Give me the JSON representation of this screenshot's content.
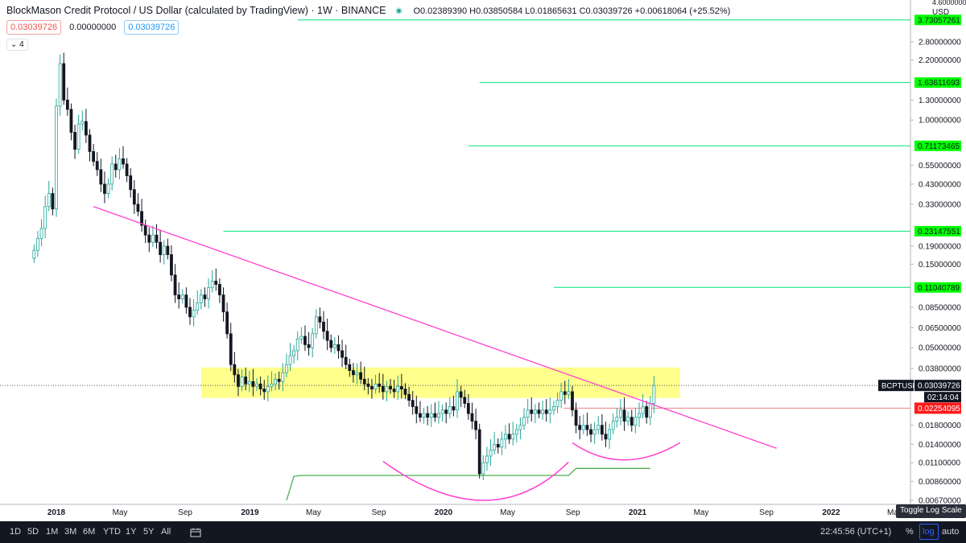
{
  "header": {
    "title": "BlockMason Credit Protocol / US Dollar (calculated by TradingView) · 1W · BINANCE",
    "ohlc": "O0.02389390  H0.03850584  L0.01865631  C0.03039726  +0.00618064 (+25.52%)"
  },
  "badges": {
    "bid": "0.03039726",
    "spread": "0.00000000",
    "ask": "0.03039726",
    "indicator_count": "4"
  },
  "scale": {
    "currency": "USD",
    "top_label": "4.60000000",
    "ticks": [
      {
        "label": "2.80000000",
        "value": 2.8
      },
      {
        "label": "2.20000000",
        "value": 2.2
      },
      {
        "label": "1.30000000",
        "value": 1.3
      },
      {
        "label": "1.00000000",
        "value": 1.0
      },
      {
        "label": "0.55000000",
        "value": 0.55
      },
      {
        "label": "0.43000000",
        "value": 0.43
      },
      {
        "label": "0.33000000",
        "value": 0.33
      },
      {
        "label": "0.19000000",
        "value": 0.19
      },
      {
        "label": "0.15000000",
        "value": 0.15
      },
      {
        "label": "0.08500000",
        "value": 0.085
      },
      {
        "label": "0.06500000",
        "value": 0.065
      },
      {
        "label": "0.05000000",
        "value": 0.05
      },
      {
        "label": "0.03800000",
        "value": 0.038
      },
      {
        "label": "0.01800000",
        "value": 0.018
      },
      {
        "label": "0.01400000",
        "value": 0.014
      },
      {
        "label": "0.01100000",
        "value": 0.011
      },
      {
        "label": "0.00860000",
        "value": 0.0086
      },
      {
        "label": "0.00670000",
        "value": 0.0067
      }
    ],
    "log": true
  },
  "levels": [
    {
      "label": "3.73057261",
      "value": 3.73057261,
      "from": "2019-04-01"
    },
    {
      "label": "1.63611693",
      "value": 1.63611693,
      "from": "2020-03-09"
    },
    {
      "label": "0.71173465",
      "value": 0.71173465,
      "from": "2020-02-17"
    },
    {
      "label": "0.23147551",
      "value": 0.23147551,
      "from": "2018-11-12"
    },
    {
      "label": "0.11040789",
      "value": 0.11040789,
      "from": "2020-07-27"
    }
  ],
  "price_tags": {
    "symbol": "BCPTUSD",
    "price": "0.03039726",
    "countdown": "02:14:04",
    "red_level": "0.02254095",
    "red_value": 0.02254095,
    "current_value": 0.03039726
  },
  "support_zone": {
    "low": 0.0258,
    "high": 0.0385,
    "from": "2018-10-01",
    "to": "2021-03-22"
  },
  "colors": {
    "up": "#26a69a",
    "down": "#131722",
    "level_line": "#00e676",
    "level_tag": "#00ff00",
    "trendline": "#ff40d0",
    "zone": "#ffff66",
    "red_tag": "#ff1a1a",
    "toolbar_bg": "#131722"
  },
  "time_axis": {
    "labels": [
      {
        "label": "2018",
        "date": "2018-01-01"
      },
      {
        "label": "May",
        "date": "2018-05-01"
      },
      {
        "label": "Sep",
        "date": "2018-09-01"
      },
      {
        "label": "2019",
        "date": "2019-01-01"
      },
      {
        "label": "May",
        "date": "2019-05-01"
      },
      {
        "label": "Sep",
        "date": "2019-09-01"
      },
      {
        "label": "2020",
        "date": "2020-01-01"
      },
      {
        "label": "May",
        "date": "2020-05-01"
      },
      {
        "label": "Sep",
        "date": "2020-09-01"
      },
      {
        "label": "2021",
        "date": "2021-01-01"
      },
      {
        "label": "May",
        "date": "2021-05-01"
      },
      {
        "label": "Sep",
        "date": "2021-09-01"
      },
      {
        "label": "2022",
        "date": "2022-01-01"
      },
      {
        "label": "May",
        "date": "2022-05-01"
      }
    ]
  },
  "tooltip": "Toggle Log Scale",
  "bottom_bar": {
    "timeframes": [
      "1D",
      "5D",
      "1M",
      "3M",
      "6M",
      "YTD",
      "1Y",
      "5Y",
      "All"
    ],
    "compare_icon": "calendar-range-icon",
    "time": "22:45:56 (UTC+1)",
    "percent": "%",
    "log": "log",
    "auto": "auto"
  },
  "chart_data": {
    "type": "candlestick",
    "interval": "1W",
    "symbol": "BCPTUSD",
    "log_scale": true,
    "ylim": [
      0.0067,
      4.6
    ],
    "trendline": [
      {
        "date": "2018-03-12",
        "value": 0.32
      },
      {
        "date": "2021-09-20",
        "value": 0.0133
      }
    ],
    "arcs": [
      {
        "from": {
          "date": "2019-09-09",
          "value": 0.0112
        },
        "bottom": {
          "date": "2020-03-16",
          "value": 0.0067
        },
        "to": {
          "date": "2020-08-24",
          "value": 0.0111
        }
      },
      {
        "from": {
          "date": "2020-08-31",
          "value": 0.0143
        },
        "bottom": {
          "date": "2020-12-07",
          "value": 0.0114
        },
        "to": {
          "date": "2021-03-22",
          "value": 0.0143
        }
      }
    ],
    "indicator_line": [
      {
        "date": "2019-03-11",
        "value": 0.0067
      },
      {
        "date": "2019-03-25",
        "value": 0.0092
      },
      {
        "date": "2019-04-08",
        "value": 0.0093
      },
      {
        "date": "2020-08-24",
        "value": 0.0093
      },
      {
        "date": "2020-09-07",
        "value": 0.0102
      },
      {
        "date": "2021-01-25",
        "value": 0.0102
      }
    ],
    "closes": [
      [
        "2017-11-20",
        0.18
      ],
      [
        "2017-11-27",
        0.21
      ],
      [
        "2017-12-04",
        0.24
      ],
      [
        "2017-12-11",
        0.32
      ],
      [
        "2017-12-18",
        0.38
      ],
      [
        "2017-12-25",
        0.31
      ],
      [
        "2018-01-01",
        1.2
      ],
      [
        "2018-01-08",
        2.1
      ],
      [
        "2018-01-15",
        1.3
      ],
      [
        "2018-01-22",
        1.15
      ],
      [
        "2018-01-29",
        0.85
      ],
      [
        "2018-02-05",
        0.68
      ],
      [
        "2018-02-12",
        0.95
      ],
      [
        "2018-02-19",
        0.98
      ],
      [
        "2018-02-26",
        0.82
      ],
      [
        "2018-03-05",
        0.66
      ],
      [
        "2018-03-12",
        0.58
      ],
      [
        "2018-03-19",
        0.52
      ],
      [
        "2018-03-26",
        0.43
      ],
      [
        "2018-04-02",
        0.38
      ],
      [
        "2018-04-09",
        0.43
      ],
      [
        "2018-04-16",
        0.56
      ],
      [
        "2018-04-23",
        0.52
      ],
      [
        "2018-04-30",
        0.6
      ],
      [
        "2018-05-07",
        0.56
      ],
      [
        "2018-05-14",
        0.48
      ],
      [
        "2018-05-21",
        0.4
      ],
      [
        "2018-05-28",
        0.33
      ],
      [
        "2018-06-04",
        0.3
      ],
      [
        "2018-06-11",
        0.25
      ],
      [
        "2018-06-18",
        0.22
      ],
      [
        "2018-06-25",
        0.2
      ],
      [
        "2018-07-02",
        0.22
      ],
      [
        "2018-07-09",
        0.2
      ],
      [
        "2018-07-16",
        0.17
      ],
      [
        "2018-07-23",
        0.19
      ],
      [
        "2018-07-30",
        0.17
      ],
      [
        "2018-08-06",
        0.13
      ],
      [
        "2018-08-13",
        0.1
      ],
      [
        "2018-08-20",
        0.095
      ],
      [
        "2018-08-27",
        0.1
      ],
      [
        "2018-09-03",
        0.085
      ],
      [
        "2018-09-10",
        0.075
      ],
      [
        "2018-09-17",
        0.082
      ],
      [
        "2018-09-24",
        0.09
      ],
      [
        "2018-10-01",
        0.1
      ],
      [
        "2018-10-08",
        0.095
      ],
      [
        "2018-10-15",
        0.11
      ],
      [
        "2018-10-22",
        0.12
      ],
      [
        "2018-10-29",
        0.115
      ],
      [
        "2018-11-05",
        0.1
      ],
      [
        "2018-11-12",
        0.08
      ],
      [
        "2018-11-19",
        0.06
      ],
      [
        "2018-11-26",
        0.04
      ],
      [
        "2018-12-03",
        0.035
      ],
      [
        "2018-12-10",
        0.03
      ],
      [
        "2018-12-17",
        0.034
      ],
      [
        "2018-12-24",
        0.031
      ],
      [
        "2018-12-31",
        0.032
      ],
      [
        "2019-01-07",
        0.03
      ],
      [
        "2019-01-14",
        0.031
      ],
      [
        "2019-01-21",
        0.029
      ],
      [
        "2019-01-28",
        0.028
      ],
      [
        "2019-02-04",
        0.03
      ],
      [
        "2019-02-11",
        0.031
      ],
      [
        "2019-02-18",
        0.033
      ],
      [
        "2019-02-25",
        0.032
      ],
      [
        "2019-03-04",
        0.036
      ],
      [
        "2019-03-11",
        0.04
      ],
      [
        "2019-03-18",
        0.045
      ],
      [
        "2019-03-25",
        0.048
      ],
      [
        "2019-04-01",
        0.056
      ],
      [
        "2019-04-08",
        0.058
      ],
      [
        "2019-04-15",
        0.052
      ],
      [
        "2019-04-22",
        0.05
      ],
      [
        "2019-04-29",
        0.06
      ],
      [
        "2019-05-06",
        0.075
      ],
      [
        "2019-05-13",
        0.07
      ],
      [
        "2019-05-20",
        0.062
      ],
      [
        "2019-05-27",
        0.055
      ],
      [
        "2019-06-03",
        0.05
      ],
      [
        "2019-06-10",
        0.052
      ],
      [
        "2019-06-17",
        0.048
      ],
      [
        "2019-06-24",
        0.044
      ],
      [
        "2019-07-01",
        0.04
      ],
      [
        "2019-07-08",
        0.037
      ],
      [
        "2019-07-15",
        0.035
      ],
      [
        "2019-07-22",
        0.036
      ],
      [
        "2019-07-29",
        0.033
      ],
      [
        "2019-08-05",
        0.031
      ],
      [
        "2019-08-12",
        0.03
      ],
      [
        "2019-08-19",
        0.029
      ],
      [
        "2019-08-26",
        0.031
      ],
      [
        "2019-09-02",
        0.03
      ],
      [
        "2019-09-09",
        0.028
      ],
      [
        "2019-09-16",
        0.03
      ],
      [
        "2019-09-23",
        0.029
      ],
      [
        "2019-09-30",
        0.028
      ],
      [
        "2019-10-07",
        0.03
      ],
      [
        "2019-10-14",
        0.029
      ],
      [
        "2019-10-21",
        0.027
      ],
      [
        "2019-10-28",
        0.025
      ],
      [
        "2019-11-04",
        0.023
      ],
      [
        "2019-11-11",
        0.021
      ],
      [
        "2019-11-18",
        0.02
      ],
      [
        "2019-11-25",
        0.021
      ],
      [
        "2019-12-02",
        0.02
      ],
      [
        "2019-12-09",
        0.021
      ],
      [
        "2019-12-16",
        0.02
      ],
      [
        "2019-12-23",
        0.021
      ],
      [
        "2019-12-30",
        0.022
      ],
      [
        "2020-01-06",
        0.021
      ],
      [
        "2020-01-13",
        0.023
      ],
      [
        "2020-01-20",
        0.022
      ],
      [
        "2020-01-27",
        0.028
      ],
      [
        "2020-02-03",
        0.026
      ],
      [
        "2020-02-10",
        0.024
      ],
      [
        "2020-02-17",
        0.021
      ],
      [
        "2020-02-24",
        0.019
      ],
      [
        "2020-03-02",
        0.017
      ],
      [
        "2020-03-09",
        0.0095
      ],
      [
        "2020-03-16",
        0.011
      ],
      [
        "2020-03-23",
        0.012
      ],
      [
        "2020-03-30",
        0.013
      ],
      [
        "2020-04-06",
        0.014
      ],
      [
        "2020-04-13",
        0.0135
      ],
      [
        "2020-04-20",
        0.015
      ],
      [
        "2020-04-27",
        0.016
      ],
      [
        "2020-05-04",
        0.015
      ],
      [
        "2020-05-11",
        0.016
      ],
      [
        "2020-05-18",
        0.017
      ],
      [
        "2020-05-25",
        0.018
      ],
      [
        "2020-06-01",
        0.02
      ],
      [
        "2020-06-08",
        0.022
      ],
      [
        "2020-06-15",
        0.021
      ],
      [
        "2020-06-22",
        0.022
      ],
      [
        "2020-06-29",
        0.021
      ],
      [
        "2020-07-06",
        0.022
      ],
      [
        "2020-07-13",
        0.021
      ],
      [
        "2020-07-20",
        0.022
      ],
      [
        "2020-07-27",
        0.023
      ],
      [
        "2020-08-03",
        0.025
      ],
      [
        "2020-08-10",
        0.028
      ],
      [
        "2020-08-17",
        0.027
      ],
      [
        "2020-08-24",
        0.028
      ],
      [
        "2020-08-31",
        0.022
      ],
      [
        "2020-09-07",
        0.018
      ],
      [
        "2020-09-14",
        0.017
      ],
      [
        "2020-09-21",
        0.018
      ],
      [
        "2020-09-28",
        0.017
      ],
      [
        "2020-10-05",
        0.016
      ],
      [
        "2020-10-12",
        0.017
      ],
      [
        "2020-10-19",
        0.018
      ],
      [
        "2020-10-26",
        0.016
      ],
      [
        "2020-11-02",
        0.015
      ],
      [
        "2020-11-09",
        0.017
      ],
      [
        "2020-11-16",
        0.019
      ],
      [
        "2020-11-23",
        0.02
      ],
      [
        "2020-11-30",
        0.022
      ],
      [
        "2020-12-07",
        0.019
      ],
      [
        "2020-12-14",
        0.02
      ],
      [
        "2020-12-21",
        0.018
      ],
      [
        "2020-12-28",
        0.02
      ],
      [
        "2021-01-04",
        0.021
      ],
      [
        "2021-01-11",
        0.023
      ],
      [
        "2021-01-18",
        0.02
      ],
      [
        "2021-01-25",
        0.024
      ],
      [
        "2021-02-01",
        0.0304
      ]
    ]
  }
}
